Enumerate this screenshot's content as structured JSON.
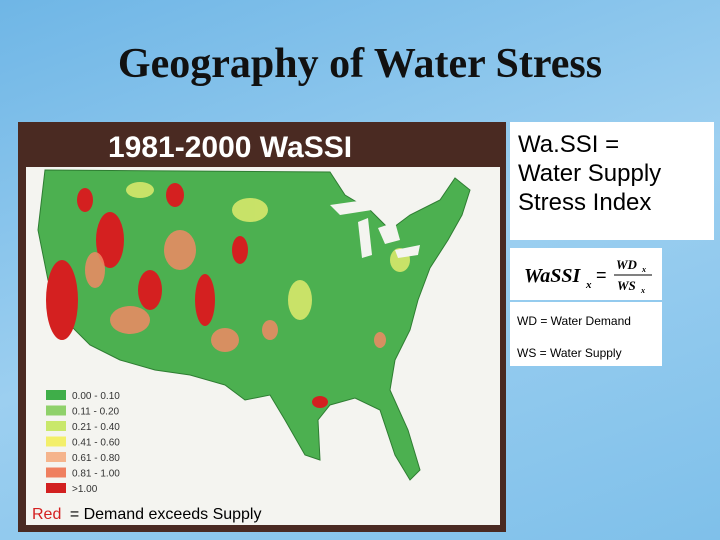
{
  "header": {
    "title": "Geography of Water Stress"
  },
  "map": {
    "title": "1981-2000 WaSSI",
    "legend": [
      {
        "label": "0.00 - 0.10",
        "color": "#3fae49"
      },
      {
        "label": "0.11 - 0.20",
        "color": "#8fd16a"
      },
      {
        "label": "0.21 - 0.40",
        "color": "#c9e86b"
      },
      {
        "label": "0.41 - 0.60",
        "color": "#f3ef6a"
      },
      {
        "label": "0.61 - 0.80",
        "color": "#f5b48c"
      },
      {
        "label": "0.81 - 1.00",
        "color": "#ef7f5f"
      },
      {
        "label": ">1.00",
        "color": "#d22020"
      }
    ],
    "note": {
      "highlight": "Red",
      "text": "= Demand exceeds Supply"
    }
  },
  "definition": {
    "lines": [
      "Wa.SSI =",
      "Water Supply",
      "Stress Index"
    ]
  },
  "formula": {
    "lhs": "WaSSI",
    "lhs_sub": "x",
    "num": "WD",
    "num_sub": "x",
    "den": "WS",
    "den_sub": "x"
  },
  "terms": [
    "WD = Water Demand",
    "WS = Water Supply"
  ]
}
